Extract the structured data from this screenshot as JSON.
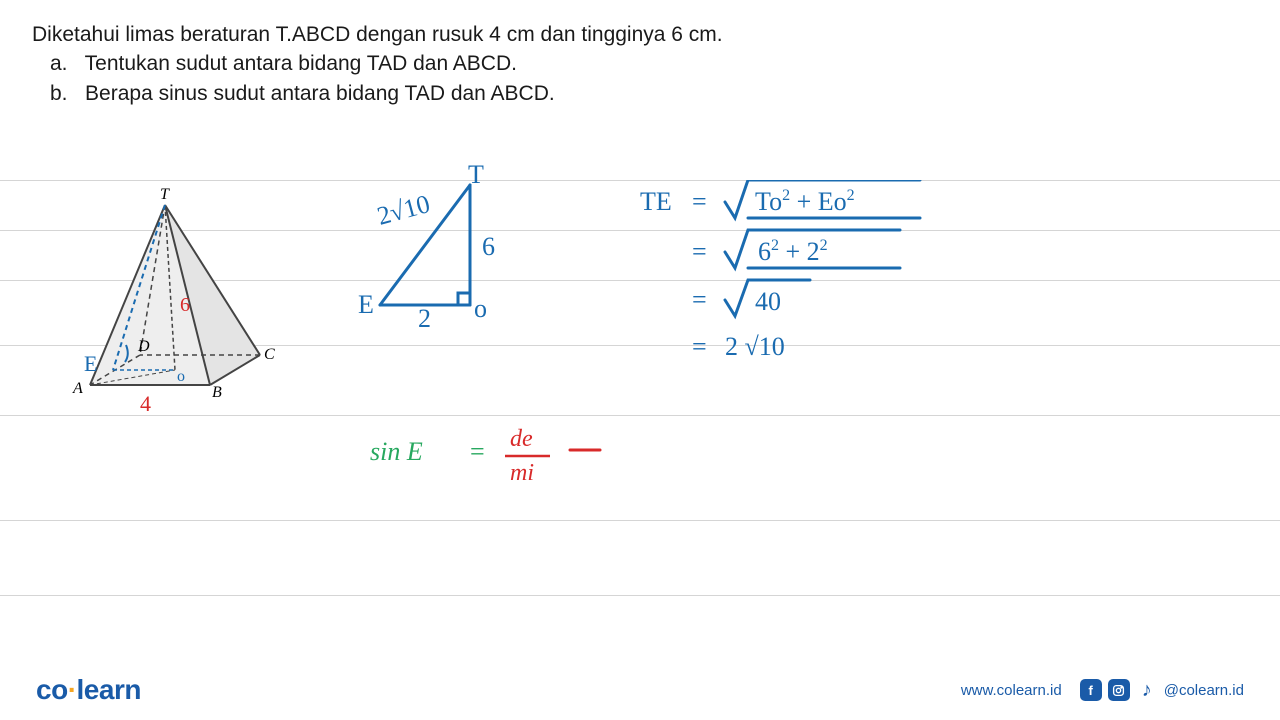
{
  "question": {
    "stem": "Diketahui limas beraturan T.ABCD dengan rusuk 4 cm dan tingginya  6 cm.",
    "a_prefix": "a.",
    "a_text": "Tentukan sudut antara bidang TAD  dan ABCD.",
    "b_prefix": "b.",
    "b_text": "Berapa sinus sudut antara bidang TAD dan ABCD."
  },
  "ruled_lines": {
    "y_positions": [
      30,
      80,
      130,
      195,
      265,
      370,
      445
    ],
    "color": "#d5d5d5"
  },
  "pyramid": {
    "labels": {
      "T": "T",
      "A": "A",
      "B": "B",
      "C": "C",
      "D": "D",
      "E": "E",
      "O": "o"
    },
    "height_label": "6",
    "base_label": "4",
    "stroke_color": "#555555",
    "fill_color": "#e8e8e8",
    "label_color_main": "#000000",
    "label_E_color": "#1a6bb0",
    "label_height_color": "#d82a2a",
    "label_base_color": "#d82a2a"
  },
  "triangle": {
    "labels": {
      "T": "T",
      "E": "E",
      "O": "o"
    },
    "hyp": "2√10",
    "vert": "6",
    "base": "2",
    "stroke_color": "#1a6bb0"
  },
  "calc": {
    "line1_lhs": "TE",
    "line1_rhs_a": "To",
    "line1_rhs_b": "Eo",
    "line2_a": "6",
    "line2_b": "2",
    "line3": "40",
    "line4": "2 √10",
    "color": "#1a6bb0"
  },
  "sin_eq": {
    "lhs": "sin  E",
    "eq": "=",
    "num": "de",
    "den": "mi",
    "trail": "—",
    "lhs_color": "#27a85f",
    "rhs_color": "#d82a2a"
  },
  "footer": {
    "logo_co": "co",
    "logo_dot": "·",
    "logo_learn": "learn",
    "url": "www.colearn.id",
    "handle": "@colearn.id",
    "icons": {
      "fb": "f",
      "ig_svg": true,
      "tt": "♪"
    }
  },
  "colors": {
    "blue": "#1a6bb0",
    "red": "#d82a2a",
    "green": "#27a85f",
    "brand_blue": "#1a5ba8",
    "text": "#1a1a1a"
  }
}
